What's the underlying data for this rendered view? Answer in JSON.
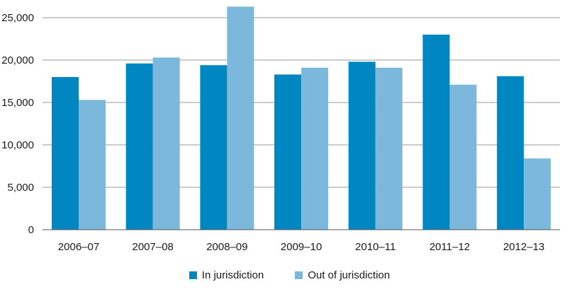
{
  "chart_data": {
    "type": "bar",
    "title": "",
    "xlabel": "",
    "ylabel": "",
    "categories": [
      "2006–07",
      "2007–08",
      "2008–09",
      "2009–10",
      "2010–11",
      "2011–12",
      "2012–13"
    ],
    "series": [
      {
        "name": "In jurisdiction",
        "color": "#0087c1",
        "values": [
          18000,
          19600,
          19400,
          18300,
          19800,
          23000,
          18100
        ]
      },
      {
        "name": "Out of jurisdiction",
        "color": "#7cb8db",
        "values": [
          15300,
          20300,
          26300,
          19100,
          19100,
          17100,
          8400
        ]
      }
    ],
    "ylim": [
      0,
      25000
    ],
    "yticks": [
      0,
      5000,
      10000,
      15000,
      20000,
      25000
    ],
    "ytick_labels": [
      "0",
      "5,000",
      "10,000",
      "15,000",
      "20,000",
      "25,000"
    ],
    "grid": true,
    "legend_position": "bottom-center"
  }
}
